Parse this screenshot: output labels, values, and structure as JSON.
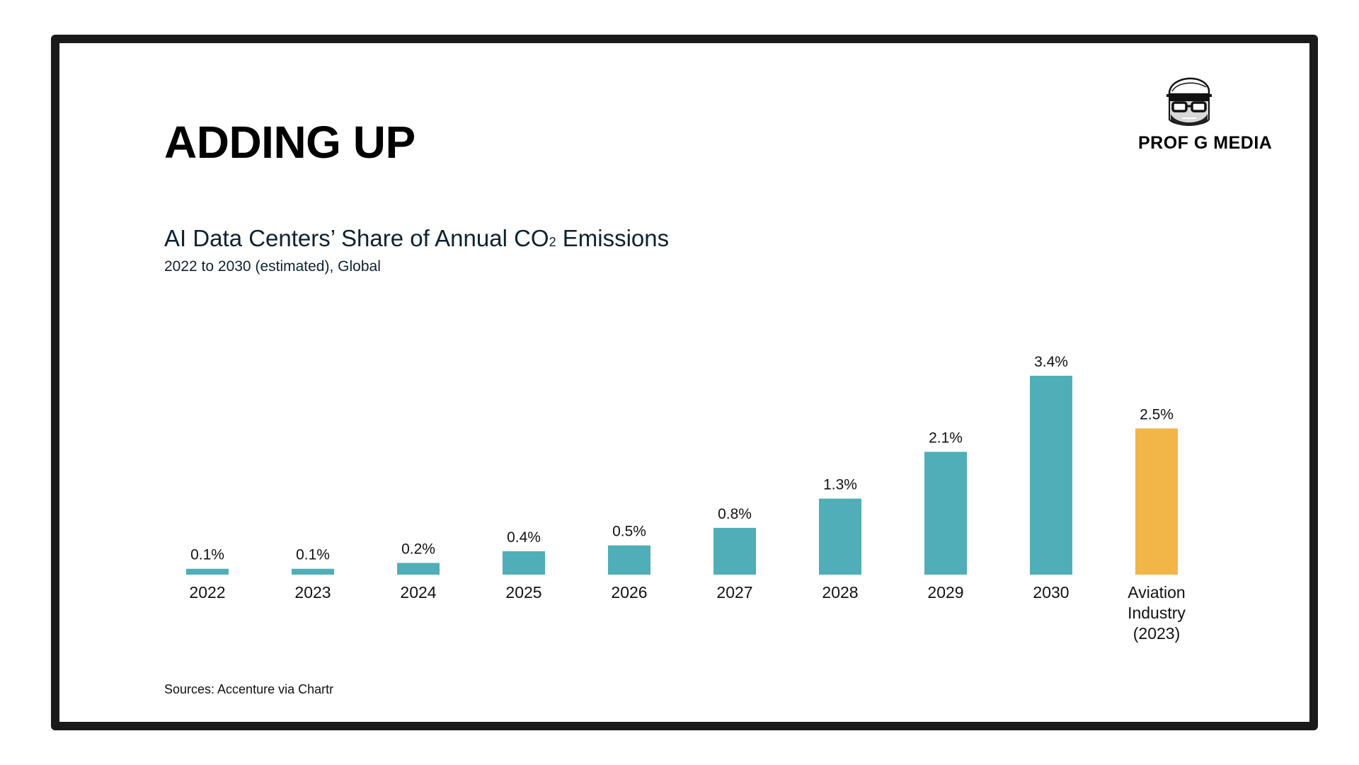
{
  "slide": {
    "title": "ADDING UP",
    "brand": {
      "name": "PROF G MEDIA",
      "logo_icon": "professor-caricature-icon"
    },
    "sources": "Sources: Accenture via Chartr"
  },
  "chart_data": {
    "type": "bar",
    "title_main": "AI Data Centers’ Share of Annual CO",
    "title_subscript": "2",
    "title_tail": " Emissions",
    "subtitle": "2022 to 2030 (estimated), Global",
    "categories": [
      [
        "2022"
      ],
      [
        "2023"
      ],
      [
        "2024"
      ],
      [
        "2025"
      ],
      [
        "2026"
      ],
      [
        "2027"
      ],
      [
        "2028"
      ],
      [
        "2029"
      ],
      [
        "2030"
      ],
      [
        "Aviation",
        "Industry",
        "(2023)"
      ]
    ],
    "values": [
      0.1,
      0.1,
      0.2,
      0.4,
      0.5,
      0.8,
      1.3,
      2.1,
      3.4,
      2.5
    ],
    "value_labels": [
      "0.1%",
      "0.1%",
      "0.2%",
      "0.4%",
      "0.5%",
      "0.8%",
      "1.3%",
      "2.1%",
      "3.4%",
      "2.5%"
    ],
    "bar_colors": [
      "#4faeb7",
      "#4faeb7",
      "#4faeb7",
      "#4faeb7",
      "#4faeb7",
      "#4faeb7",
      "#4faeb7",
      "#4faeb7",
      "#4faeb7",
      "#f2b548"
    ],
    "ylim": [
      0,
      3.4
    ],
    "unit": "%",
    "grid": false,
    "legend": "none",
    "xlabel": "",
    "ylabel": ""
  }
}
